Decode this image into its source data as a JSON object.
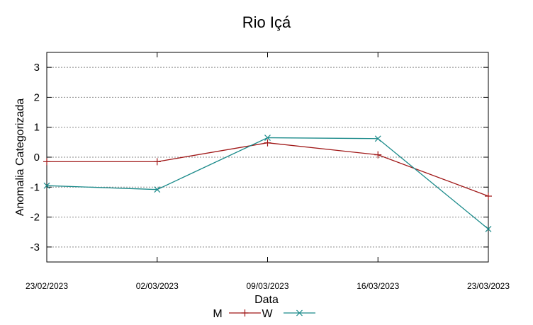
{
  "chart_data": {
    "type": "line",
    "title": "Rio Içá",
    "xlabel": "Data",
    "ylabel": "Anomalia Categorizada",
    "x": [
      "23/02/2023",
      "02/03/2023",
      "09/03/2023",
      "16/03/2023",
      "23/03/2023"
    ],
    "ylim": [
      -3.5,
      3.5
    ],
    "yticks": [
      "-3",
      "-2",
      "-1",
      "0",
      "1",
      "2",
      "3"
    ],
    "grid": true,
    "legend_position": "bottom",
    "series": [
      {
        "name": "M",
        "color": "#a01818",
        "marker": "plus",
        "values": [
          -0.15,
          -0.15,
          0.48,
          0.08,
          -1.3
        ]
      },
      {
        "name": "W",
        "color": "#1a8a8a",
        "marker": "cross",
        "values": [
          -0.95,
          -1.08,
          0.65,
          0.62,
          -2.4
        ]
      }
    ]
  }
}
